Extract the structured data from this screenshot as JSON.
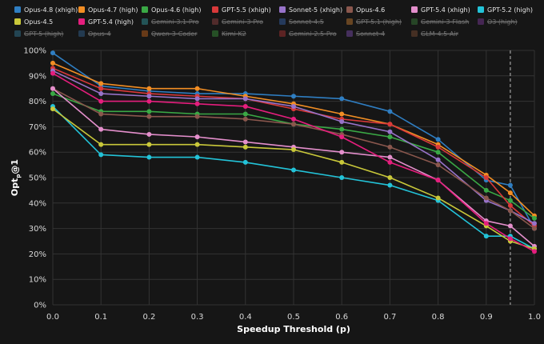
{
  "chart_data": {
    "type": "line",
    "xlabel": "Speedup Threshold (p)",
    "ylabel": "Opt",
    "ylabel_sub": "p",
    "ylabel_suffix": "@1",
    "x": [
      0.0,
      0.1,
      0.2,
      0.3,
      0.4,
      0.5,
      0.6,
      0.7,
      0.8,
      0.9,
      0.95,
      1.0
    ],
    "x_ticks": [
      "0.0",
      "0.1",
      "0.2",
      "0.3",
      "0.4",
      "0.5",
      "0.6",
      "0.7",
      "0.8",
      "0.9",
      "1.0"
    ],
    "y_ticks": [
      "0%",
      "10%",
      "20%",
      "30%",
      "40%",
      "50%",
      "60%",
      "70%",
      "80%",
      "90%",
      "100%"
    ],
    "xlim": [
      0,
      1
    ],
    "ylim": [
      0,
      100
    ],
    "grid": true,
    "legend_position": "top",
    "reference_line_x": 0.95,
    "series": [
      {
        "name": "Opus-4.8 (xhigh)",
        "color": "#2f7ec2",
        "visible": true,
        "values": [
          99,
          86,
          84,
          83,
          83,
          82,
          81,
          76,
          65,
          49,
          47,
          30
        ]
      },
      {
        "name": "Opus-4.7 (high)",
        "color": "#f28e24",
        "visible": true,
        "values": [
          95,
          87,
          85,
          85,
          82,
          79,
          75,
          71,
          63,
          51,
          44,
          35
        ]
      },
      {
        "name": "Opus-4.6 (high)",
        "color": "#3aa845",
        "visible": true,
        "values": [
          83,
          76,
          76,
          75,
          75,
          71,
          69,
          66,
          60,
          45,
          41,
          34
        ]
      },
      {
        "name": "GPT-5.5 (xhigh)",
        "color": "#d9393a",
        "visible": true,
        "values": [
          93,
          85,
          83,
          82,
          81,
          77,
          73,
          71,
          62,
          50,
          39,
          31
        ]
      },
      {
        "name": "Sonnet-5 (xhigh)",
        "color": "#9873c9",
        "visible": true,
        "values": [
          92,
          83,
          82,
          81,
          81,
          78,
          72,
          68,
          57,
          41,
          37,
          32
        ]
      },
      {
        "name": "Opus-4.6",
        "color": "#8a574d",
        "visible": true,
        "values": [
          85,
          75,
          74,
          74,
          73,
          71,
          67,
          62,
          55,
          42,
          37,
          30
        ]
      },
      {
        "name": "GPT-5.4 (xhigh)",
        "color": "#e48fcc",
        "visible": true,
        "values": [
          85,
          69,
          67,
          66,
          64,
          62,
          60,
          58,
          49,
          33,
          31,
          23
        ]
      },
      {
        "name": "GPT-5.2 (high)",
        "color": "#23c3d8",
        "visible": true,
        "values": [
          78,
          59,
          58,
          58,
          56,
          53,
          50,
          47,
          41,
          27,
          27,
          22
        ]
      },
      {
        "name": "Opus-4.5",
        "color": "#c9c83a",
        "visible": true,
        "values": [
          77,
          63,
          63,
          63,
          62,
          61,
          56,
          50,
          42,
          31,
          25,
          22
        ]
      },
      {
        "name": "GPT-5.4 (high)",
        "color": "#e51e7d",
        "visible": true,
        "values": [
          91,
          80,
          80,
          79,
          78,
          73,
          66,
          56,
          49,
          32,
          26,
          21
        ]
      },
      {
        "name": "Gemini-3.1-Pro",
        "color": "#2a6f73",
        "visible": false
      },
      {
        "name": "Gemini-3-Pro",
        "color": "#6b3434",
        "visible": false
      },
      {
        "name": "Sonnet-4.5",
        "color": "#2c4a7a",
        "visible": false
      },
      {
        "name": "GPT-5.1 (high)",
        "color": "#8a5a28",
        "visible": false
      },
      {
        "name": "Gemini-3-Flash",
        "color": "#2e5a2e",
        "visible": false
      },
      {
        "name": "O3 (high)",
        "color": "#5a2e6e",
        "visible": false
      },
      {
        "name": "GPT-5 (high)",
        "color": "#2a5a6e",
        "visible": false
      },
      {
        "name": "Opus-4",
        "color": "#2a4a6a",
        "visible": false
      },
      {
        "name": "Qwen-3-Coder",
        "color": "#8a4a1a",
        "visible": false
      },
      {
        "name": "Kimi-K2",
        "color": "#2e6a2e",
        "visible": false
      },
      {
        "name": "Gemini-2.5-Pro",
        "color": "#7a2a2a",
        "visible": false
      },
      {
        "name": "Sonnet-4",
        "color": "#5a3a7a",
        "visible": false
      },
      {
        "name": "GLM-4.5-Air",
        "color": "#5a3a2a",
        "visible": false
      }
    ]
  }
}
